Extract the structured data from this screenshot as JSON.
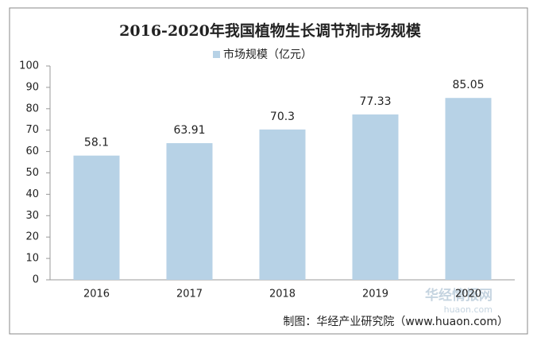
{
  "chart_data": {
    "type": "bar",
    "title": "2016-2020年我国植物生长调节剂市场规模",
    "categories": [
      "2016",
      "2017",
      "2018",
      "2019",
      "2020"
    ],
    "series": [
      {
        "name": "市场规模（亿元）",
        "color": "#b7d2e6",
        "values": [
          58.1,
          63.91,
          70.3,
          77.33,
          85.05
        ]
      }
    ],
    "ylim": [
      0,
      100
    ],
    "yticks": [
      0,
      10,
      20,
      30,
      40,
      50,
      60,
      70,
      80,
      90,
      100
    ],
    "grid": false,
    "legend": "top",
    "source": "制图：华经产业研究院（www.huaon.com）",
    "watermark": [
      "华经情报网",
      "huaon.com"
    ]
  }
}
